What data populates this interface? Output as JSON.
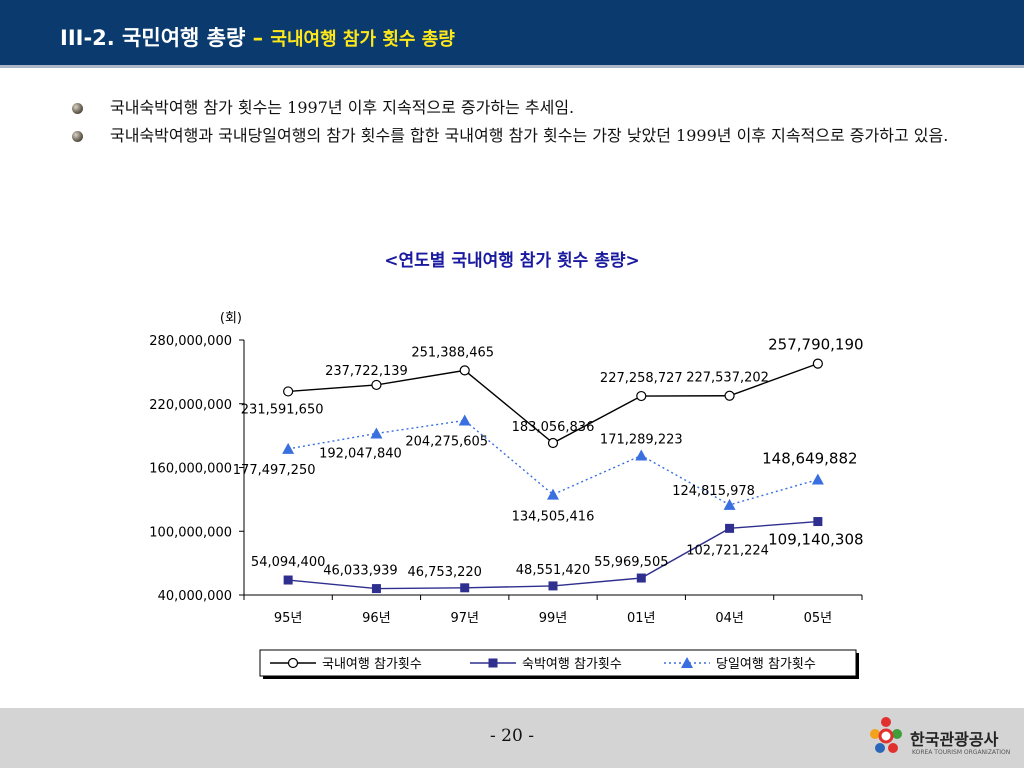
{
  "header": {
    "title_main": "III-2. 국민여행 총량",
    "title_dash": "–",
    "title_sub": "국내여행 참가 횟수 총량"
  },
  "bullets": [
    "국내숙박여행 참가 횟수는 1997년 이후 지속적으로 증가하는 추세임.",
    "국내숙박여행과 국내당일여행의 참가 횟수를 합한 국내여행 참가 횟수는 가장 낮았던 1999년 이후 지속적으로 증가하고 있음."
  ],
  "footer": {
    "page": "- 20 -",
    "logo_text": "한국관광공사",
    "logo_text_en": "KOREA TOURISM ORGANIZATION"
  },
  "colors": {
    "header_bg": "#0a3a6e",
    "title_sub": "#ffe81a",
    "chart_title": "#1a1aa0",
    "series_total": "#000000",
    "series_overnight": "#2f2f8f",
    "series_day": "#3a6fe0"
  },
  "chart_data": {
    "type": "line",
    "title": "<연도별 국내여행 참가 횟수 총량>",
    "ylabel": "(회)",
    "categories": [
      "95년",
      "96년",
      "97년",
      "99년",
      "01년",
      "04년",
      "05년"
    ],
    "ylim": [
      40000000,
      280000000
    ],
    "yticks": [
      40000000,
      100000000,
      160000000,
      220000000,
      280000000
    ],
    "ytick_labels": [
      "40,000,000",
      "100,000,000",
      "160,000,000",
      "220,000,000",
      "280,000,000"
    ],
    "legend_position": "bottom",
    "series": [
      {
        "name": "국내여행 참가횟수",
        "marker": "circle",
        "line": "solid",
        "values": [
          231591650,
          237722139,
          251388465,
          183056836,
          227258727,
          227537202,
          257790190
        ],
        "labels": [
          "231,591,650",
          "237,722,139",
          "251,388,465",
          "183,056,836",
          "227,258,727",
          "227,537,202",
          "257,790,190"
        ]
      },
      {
        "name": "숙박여행 참가횟수",
        "marker": "square",
        "line": "solid",
        "values": [
          54094400,
          46033939,
          46753220,
          48551420,
          55969505,
          102721224,
          109140308
        ],
        "labels": [
          "54,094,400",
          "46,033,939",
          "46,753,220",
          "48,551,420",
          "55,969,505",
          "102,721,224",
          "109,140,308"
        ]
      },
      {
        "name": "당일여행 참가횟수",
        "marker": "triangle",
        "line": "dotted",
        "values": [
          177497250,
          192047840,
          204275605,
          134505416,
          171289223,
          124815978,
          148649882
        ],
        "labels": [
          "177,497,250",
          "192,047,840",
          "204,275,605",
          "134,505,416",
          "171,289,223",
          "124,815,978",
          "148,649,882"
        ]
      }
    ]
  }
}
